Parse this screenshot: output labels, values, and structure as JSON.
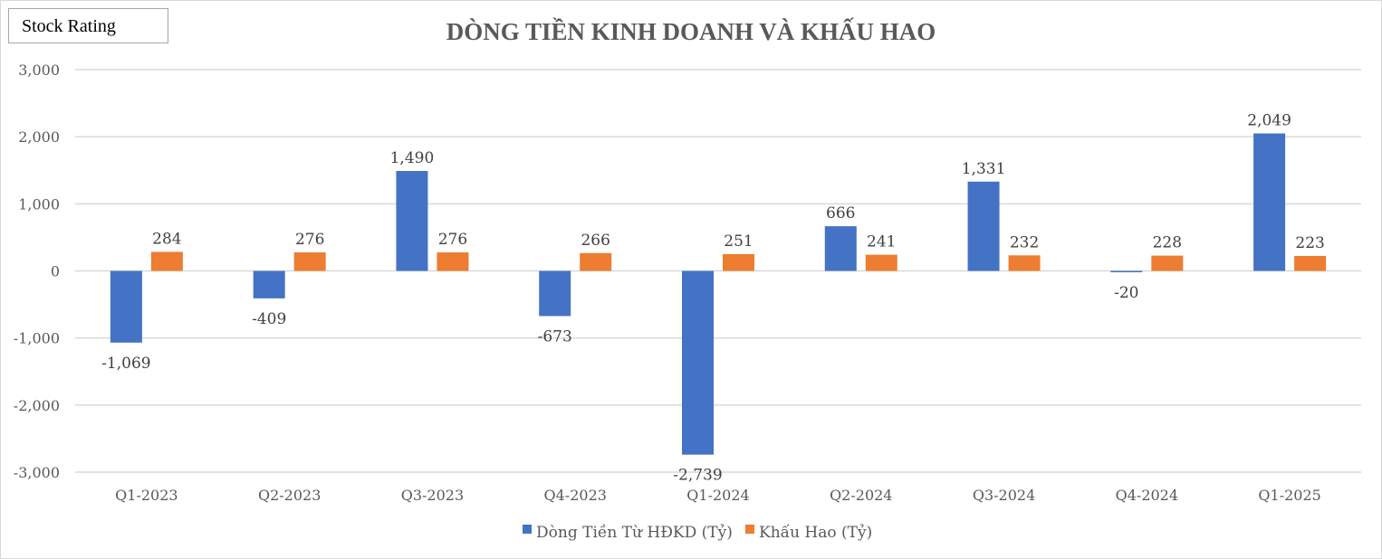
{
  "badge": {
    "label": "Stock Rating"
  },
  "chart_data": {
    "type": "bar",
    "title": "DÒNG TIỀN KINH DOANH VÀ KHẤU HAO",
    "xlabel": "",
    "ylabel": "",
    "categories": [
      "Q1-2023",
      "Q2-2023",
      "Q3-2023",
      "Q4-2023",
      "Q1-2024",
      "Q2-2024",
      "Q3-2024",
      "Q4-2024",
      "Q1-2025"
    ],
    "series": [
      {
        "name": "Dòng Tiền Từ HĐKD (Tỷ)",
        "color": "#4472C4",
        "values": [
          -1069,
          -409,
          1490,
          -673,
          -2739,
          666,
          1331,
          -20,
          2049
        ],
        "labels": [
          "-1,069",
          "-409",
          "1,490",
          "-673",
          "-2,739",
          "666",
          "1,331",
          "-20",
          "2,049"
        ]
      },
      {
        "name": "Khấu Hao (Tỷ)",
        "color": "#ED7D31",
        "values": [
          284,
          276,
          276,
          266,
          251,
          241,
          232,
          228,
          223
        ],
        "labels": [
          "284",
          "276",
          "276",
          "266",
          "251",
          "241",
          "232",
          "228",
          "223"
        ]
      }
    ],
    "ylim": [
      -3000,
      3000
    ],
    "yticks": [
      3000,
      2000,
      1000,
      0,
      -1000,
      -2000,
      -3000
    ],
    "ytick_labels": [
      "3,000",
      "2,000",
      "1,000",
      "0",
      "-1,000",
      "-2,000",
      "-3,000"
    ],
    "grid": true,
    "legend_position": "bottom",
    "data_labels": true
  }
}
